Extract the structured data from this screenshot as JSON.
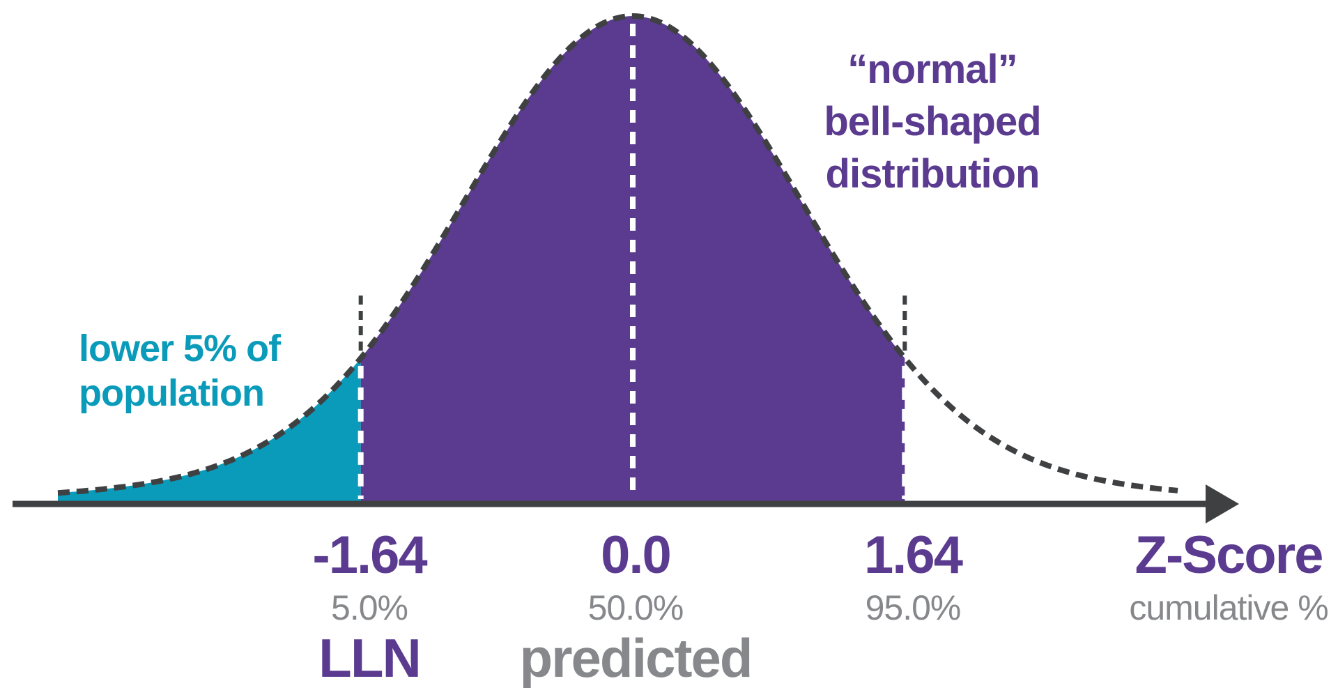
{
  "colors": {
    "purple": "#5b3b90",
    "teal": "#0a9bba",
    "gray": "#86888b",
    "dark": "#3e4042",
    "dash_white": "#ffffff",
    "background": "#ffffff"
  },
  "annotations": {
    "lower_tail": {
      "lines": [
        "lower 5% of",
        "population"
      ]
    },
    "distribution": {
      "lines": [
        "“normal”",
        "bell-shaped",
        "distribution"
      ]
    }
  },
  "axis": {
    "title": "Z-Score",
    "subtitle": "cumulative %"
  },
  "ticks": [
    {
      "z": "-1.64",
      "cum": "5.0%",
      "sub": "LLN"
    },
    {
      "z": "0.0",
      "cum": "50.0%",
      "sub": "predicted"
    },
    {
      "z": "1.64",
      "cum": "95.0%",
      "sub": ""
    }
  ],
  "chart_data": {
    "type": "area",
    "title": "“normal” bell-shaped distribution",
    "xlabel": "Z-Score",
    "x_sublabel": "cumulative %",
    "curve": "standard normal probability density (stylized bell curve, dashed outline)",
    "x_range": [
      -3.5,
      3.3
    ],
    "grid": false,
    "legend": false,
    "markers": [
      {
        "z": -1.64,
        "cumulative_pct": 5.0,
        "label": "LLN",
        "guide_line": "white-dashed"
      },
      {
        "z": 0.0,
        "cumulative_pct": 50.0,
        "label": "predicted",
        "guide_line": "white-dashed"
      },
      {
        "z": 1.64,
        "cumulative_pct": 95.0,
        "label": "",
        "guide_line": "white-dashed"
      }
    ],
    "regions": [
      {
        "name": "lower 5% of population",
        "from_z": -3.5,
        "to_z": -1.64,
        "fill": "#0a9bba"
      },
      {
        "name": "central region",
        "from_z": -1.64,
        "to_z": 1.64,
        "fill": "#5b3b90"
      },
      {
        "name": "upper tail",
        "from_z": 1.64,
        "to_z": 3.3,
        "fill": "none"
      }
    ]
  }
}
